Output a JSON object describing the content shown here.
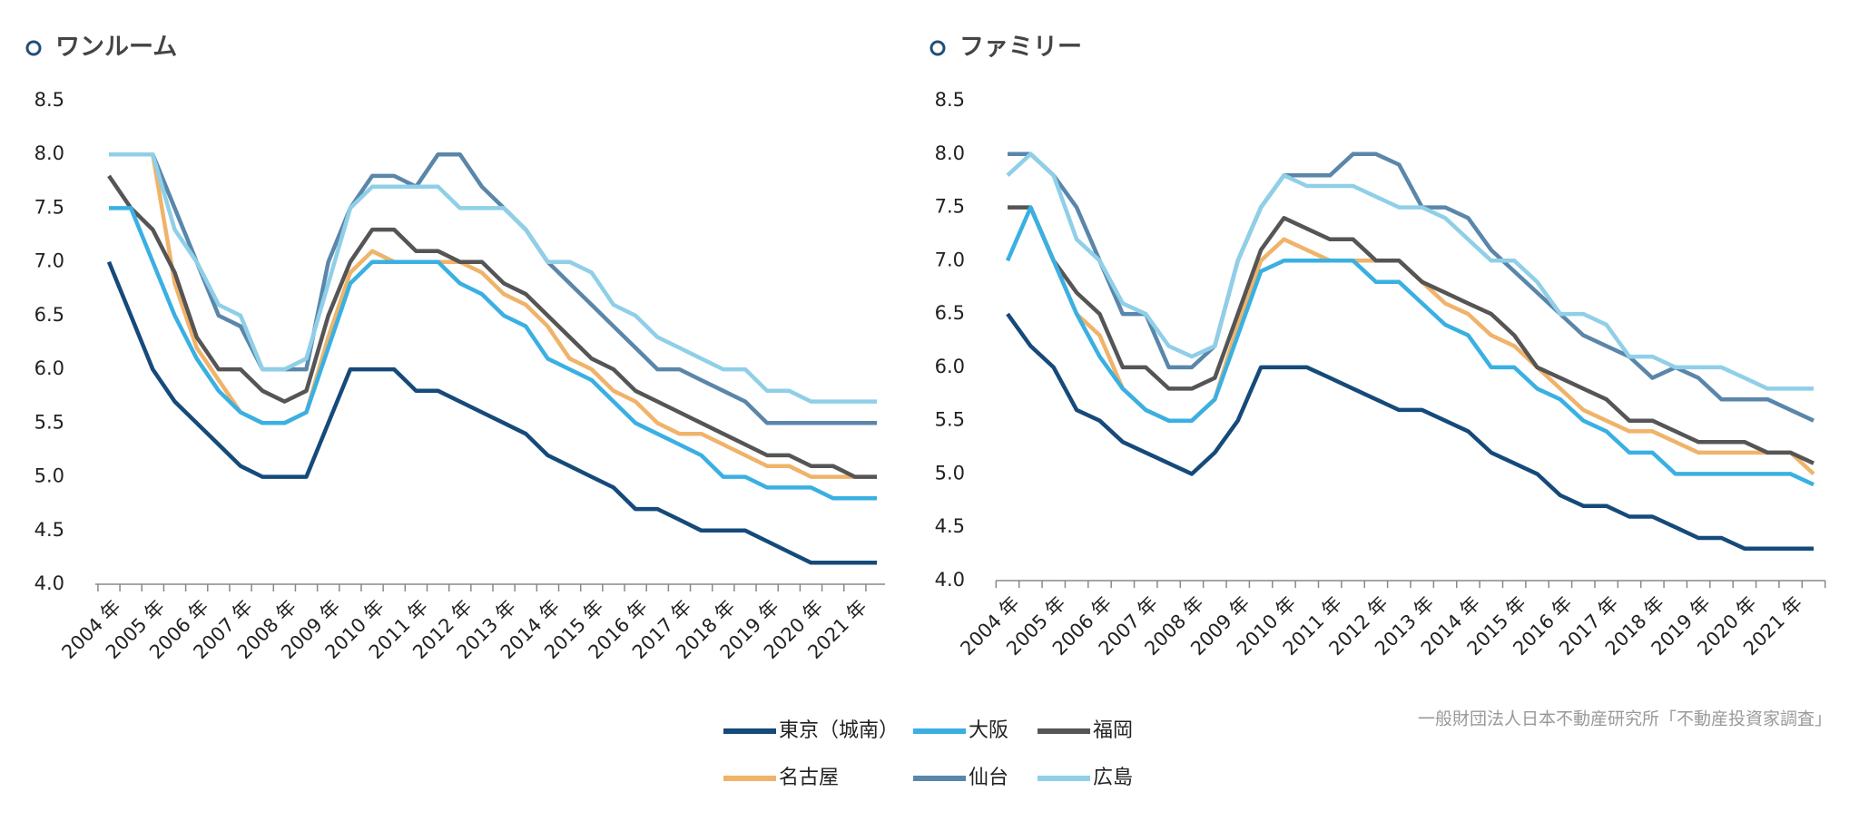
{
  "chart_data": [
    {
      "type": "line",
      "title": "ワンルーム",
      "categories": [
        "2004 年",
        null,
        "2005 年",
        null,
        "2006 年",
        null,
        "2007 年",
        null,
        "2008 年",
        null,
        "2009 年",
        null,
        "2010 年",
        null,
        "2011 年",
        null,
        "2012 年",
        null,
        "2013 年",
        null,
        "2014 年",
        null,
        "2015 年",
        null,
        "2016 年",
        null,
        "2017 年",
        null,
        "2018 年",
        null,
        "2019 年",
        null,
        "2020 年",
        null,
        "2021 年",
        null
      ],
      "ylim": [
        4.0,
        8.5
      ],
      "yticks": [
        {
          "value": 4,
          "label": "4.0"
        },
        4.5,
        {
          "value": 5,
          "label": "5.0"
        },
        5.5,
        {
          "value": 6,
          "label": "6.0"
        },
        6.5,
        {
          "value": 7,
          "label": "7.0"
        },
        7.5,
        {
          "value": 8,
          "label": "8.0"
        },
        8.5
      ],
      "series": [
        {
          "name": "名古屋",
          "color": "#f0b36a",
          "values": [
            8.0,
            8.0,
            8.0,
            6.8,
            6.2,
            5.9,
            5.6,
            5.5,
            5.5,
            5.6,
            6.3,
            6.9,
            7.1,
            7.0,
            7.0,
            7.0,
            7.0,
            6.9,
            6.7,
            6.6,
            6.4,
            6.1,
            6.0,
            5.8,
            5.7,
            5.5,
            5.4,
            5.4,
            5.3,
            5.2,
            5.1,
            5.1,
            5.0,
            5.0,
            5.0,
            5.0
          ]
        },
        {
          "name": "仙台",
          "color": "#5a86aa",
          "values": [
            8.0,
            8.0,
            8.0,
            7.5,
            7.0,
            6.5,
            6.4,
            6.0,
            6.0,
            6.0,
            7.0,
            7.5,
            7.8,
            7.8,
            7.7,
            8.0,
            8.0,
            7.7,
            7.5,
            7.3,
            7.0,
            6.8,
            6.6,
            6.4,
            6.2,
            6.0,
            6.0,
            5.9,
            5.8,
            5.7,
            5.5,
            5.5,
            5.5,
            5.5,
            5.5,
            5.5
          ]
        },
        {
          "name": "広島",
          "color": "#8fcfe8",
          "values": [
            8.0,
            8.0,
            8.0,
            7.3,
            7.0,
            6.6,
            6.5,
            6.0,
            6.0,
            6.1,
            6.8,
            7.5,
            7.7,
            7.7,
            7.7,
            7.7,
            7.5,
            7.5,
            7.5,
            7.3,
            7.0,
            7.0,
            6.9,
            6.6,
            6.5,
            6.3,
            6.2,
            6.1,
            6.0,
            6.0,
            5.8,
            5.8,
            5.7,
            5.7,
            5.7,
            5.7
          ]
        },
        {
          "name": "福岡",
          "color": "#555555",
          "values": [
            7.8,
            7.5,
            7.3,
            6.9,
            6.3,
            6.0,
            6.0,
            5.8,
            5.7,
            5.8,
            6.5,
            7.0,
            7.3,
            7.3,
            7.1,
            7.1,
            7.0,
            7.0,
            6.8,
            6.7,
            6.5,
            6.3,
            6.1,
            6.0,
            5.8,
            5.7,
            5.6,
            5.5,
            5.4,
            5.3,
            5.2,
            5.2,
            5.1,
            5.1,
            5.0,
            5.0
          ]
        },
        {
          "name": "大阪",
          "color": "#3ab0e2",
          "values": [
            7.5,
            7.5,
            7.0,
            6.5,
            6.1,
            5.8,
            5.6,
            5.5,
            5.5,
            5.6,
            6.2,
            6.8,
            7.0,
            7.0,
            7.0,
            7.0,
            6.8,
            6.7,
            6.5,
            6.4,
            6.1,
            6.0,
            5.9,
            5.7,
            5.5,
            5.4,
            5.3,
            5.2,
            5.0,
            5.0,
            4.9,
            4.9,
            4.9,
            4.8,
            4.8,
            4.8
          ]
        },
        {
          "name": "東京（城南）",
          "color": "#154a7a",
          "values": [
            7.0,
            6.5,
            6.0,
            5.7,
            5.5,
            5.3,
            5.1,
            5.0,
            5.0,
            5.0,
            5.5,
            6.0,
            6.0,
            6.0,
            5.8,
            5.8,
            5.7,
            5.6,
            5.5,
            5.4,
            5.2,
            5.1,
            5.0,
            4.9,
            4.7,
            4.7,
            4.6,
            4.5,
            4.5,
            4.5,
            4.4,
            4.3,
            4.2,
            4.2,
            4.2,
            4.2
          ]
        }
      ]
    },
    {
      "type": "line",
      "title": "ファミリー",
      "categories": [
        "2004 年",
        null,
        "2005 年",
        null,
        "2006 年",
        null,
        "2007 年",
        null,
        "2008 年",
        null,
        "2009 年",
        null,
        "2010 年",
        null,
        "2011 年",
        null,
        "2012 年",
        null,
        "2013 年",
        null,
        "2014 年",
        null,
        "2015 年",
        null,
        "2016 年",
        null,
        "2017 年",
        null,
        "2018 年",
        null,
        "2019 年",
        null,
        "2020 年",
        null,
        "2021 年",
        null
      ],
      "ylim": [
        4.0,
        8.5
      ],
      "yticks": [
        {
          "value": 4,
          "label": "4.0"
        },
        4.5,
        {
          "value": 5,
          "label": "5.0"
        },
        5.5,
        {
          "value": 6,
          "label": "6.0"
        },
        6.5,
        {
          "value": 7,
          "label": "7.0"
        },
        7.5,
        {
          "value": 8,
          "label": "8.0"
        },
        8.5
      ],
      "series": [
        {
          "color": "#f0b36a",
          "values": [
            7.5,
            7.5,
            7.0,
            6.5,
            6.3,
            5.8,
            5.6,
            5.5,
            5.5,
            5.7,
            6.4,
            7.0,
            7.2,
            7.1,
            7.0,
            7.0,
            7.0,
            7.0,
            6.8,
            6.6,
            6.5,
            6.3,
            6.2,
            6.0,
            5.8,
            5.6,
            5.5,
            5.4,
            5.4,
            5.3,
            5.2,
            5.2,
            5.2,
            5.2,
            5.2,
            5.0
          ]
        },
        {
          "color": "#5a86aa",
          "values": [
            8.0,
            8.0,
            7.8,
            7.5,
            7.0,
            6.5,
            6.5,
            6.0,
            6.0,
            6.2,
            7.0,
            7.5,
            7.8,
            7.8,
            7.8,
            8.0,
            8.0,
            7.9,
            7.5,
            7.5,
            7.4,
            7.1,
            6.9,
            6.7,
            6.5,
            6.3,
            6.2,
            6.1,
            5.9,
            6.0,
            5.9,
            5.7,
            5.7,
            5.7,
            5.6,
            5.5
          ]
        },
        {
          "color": "#8fcfe8",
          "values": [
            7.8,
            8.0,
            7.8,
            7.2,
            7.0,
            6.6,
            6.5,
            6.2,
            6.1,
            6.2,
            7.0,
            7.5,
            7.8,
            7.7,
            7.7,
            7.7,
            7.6,
            7.5,
            7.5,
            7.4,
            7.2,
            7.0,
            7.0,
            6.8,
            6.5,
            6.5,
            6.4,
            6.1,
            6.1,
            6.0,
            6.0,
            6.0,
            5.9,
            5.8,
            5.8,
            5.8
          ]
        },
        {
          "color": "#555555",
          "values": [
            7.5,
            7.5,
            7.0,
            6.7,
            6.5,
            6.0,
            6.0,
            5.8,
            5.8,
            5.9,
            6.5,
            7.1,
            7.4,
            7.3,
            7.2,
            7.2,
            7.0,
            7.0,
            6.8,
            6.7,
            6.6,
            6.5,
            6.3,
            6.0,
            5.9,
            5.8,
            5.7,
            5.5,
            5.5,
            5.4,
            5.3,
            5.3,
            5.3,
            5.2,
            5.2,
            5.1
          ]
        },
        {
          "color": "#3ab0e2",
          "values": [
            7.0,
            7.5,
            7.0,
            6.5,
            6.1,
            5.8,
            5.6,
            5.5,
            5.5,
            5.7,
            6.3,
            6.9,
            7.0,
            7.0,
            7.0,
            7.0,
            6.8,
            6.8,
            6.6,
            6.4,
            6.3,
            6.0,
            6.0,
            5.8,
            5.7,
            5.5,
            5.4,
            5.2,
            5.2,
            5.0,
            5.0,
            5.0,
            5.0,
            5.0,
            5.0,
            4.9
          ]
        },
        {
          "color": "#154a7a",
          "values": [
            6.5,
            6.2,
            6.0,
            5.6,
            5.5,
            5.3,
            5.2,
            5.1,
            5.0,
            5.2,
            5.5,
            6.0,
            6.0,
            6.0,
            5.9,
            5.8,
            5.7,
            5.6,
            5.6,
            5.5,
            5.4,
            5.2,
            5.1,
            5.0,
            4.8,
            4.7,
            4.7,
            4.6,
            4.6,
            4.5,
            4.4,
            4.4,
            4.3,
            4.3,
            4.3,
            4.3
          ]
        }
      ]
    }
  ],
  "source": "一般財団法人日本不動産研究所「不動産投資家調査」"
}
